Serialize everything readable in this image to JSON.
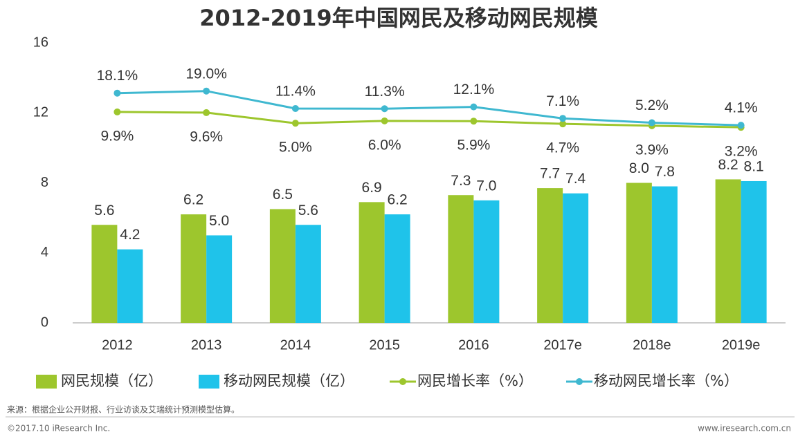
{
  "chart_data": {
    "type": "bar-line",
    "title": "2012-2019年中国网民及移动网民规模",
    "categories": [
      "2012",
      "2013",
      "2014",
      "2015",
      "2016",
      "2017e",
      "2018e",
      "2019e"
    ],
    "series": [
      {
        "name": "网民规模（亿）",
        "type": "bar",
        "color": "#9dc62d",
        "values": [
          5.6,
          6.2,
          6.5,
          6.9,
          7.3,
          7.7,
          8.0,
          8.2
        ],
        "value_labels": [
          "5.6",
          "6.2",
          "6.5",
          "6.9",
          "7.3",
          "7.7",
          "8.0",
          "8.2"
        ]
      },
      {
        "name": "移动网民规模（亿）",
        "type": "bar",
        "color": "#1fc3ea",
        "values": [
          4.2,
          5.0,
          5.6,
          6.2,
          7.0,
          7.4,
          7.8,
          8.1
        ],
        "value_labels": [
          "4.2",
          "5.0",
          "5.6",
          "6.2",
          "7.0",
          "7.4",
          "7.8",
          "8.1"
        ]
      },
      {
        "name": "网民增长率（%）",
        "type": "line",
        "axis": "y2",
        "color": "#9dc62d",
        "values": [
          9.9,
          9.6,
          5.0,
          6.0,
          5.9,
          4.7,
          3.9,
          3.2
        ],
        "value_labels": [
          "9.9%",
          "9.6%",
          "5.0%",
          "6.0%",
          "5.9%",
          "4.7%",
          "3.9%",
          "3.2%"
        ]
      },
      {
        "name": "移动网民增长率（%）",
        "type": "line",
        "axis": "y2",
        "color": "#3fb8d0",
        "values": [
          18.1,
          19.0,
          11.4,
          11.3,
          12.1,
          7.1,
          5.2,
          4.1
        ],
        "value_labels": [
          "18.1%",
          "19.0%",
          "11.4%",
          "11.3%",
          "12.1%",
          "7.1%",
          "5.2%",
          "4.1%"
        ]
      }
    ],
    "ylim": [
      0,
      16
    ],
    "yticks": [
      0,
      4,
      8,
      12,
      16
    ],
    "y2lim": [
      -82,
      40
    ],
    "grid": false
  },
  "footer": {
    "source": "来源：根据企业公开财报、行业访谈及艾瑞统计预测模型估算。",
    "copyright": "©2017.10 iResearch Inc.",
    "website": "www.iresearch.com.cn"
  }
}
